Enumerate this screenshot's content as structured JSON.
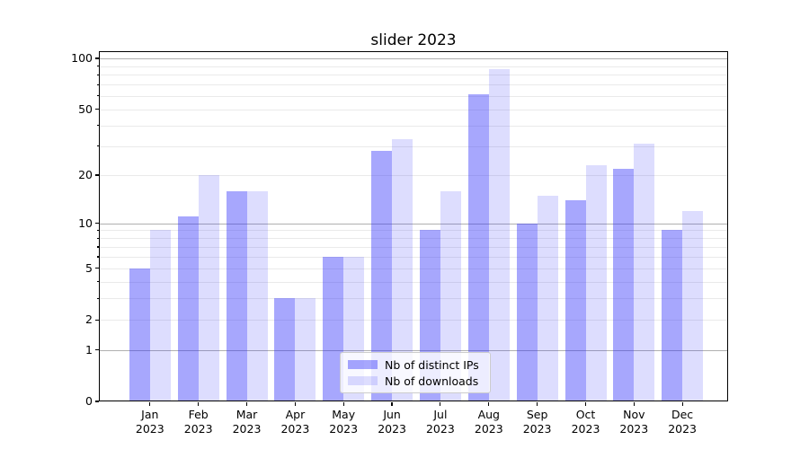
{
  "chart_data": {
    "type": "bar",
    "title": "slider 2023",
    "categories": [
      "Jan 2023",
      "Feb 2023",
      "Mar 2023",
      "Apr 2023",
      "May 2023",
      "Jun 2023",
      "Jul 2023",
      "Aug 2023",
      "Sep 2023",
      "Oct 2023",
      "Nov 2023",
      "Dec 2023"
    ],
    "series": [
      {
        "name": "Nb of distinct IPs",
        "fill": "rgba(45,45,250,0.42)",
        "values": [
          5,
          11,
          16,
          3,
          6,
          28,
          9,
          61,
          10,
          14,
          22,
          9
        ]
      },
      {
        "name": "Nb of downloads",
        "fill": "rgba(45,45,250,0.16)",
        "values": [
          9,
          20,
          16,
          3,
          6,
          33,
          16,
          86,
          15,
          23,
          31,
          12
        ]
      }
    ],
    "yscale": "log1p",
    "ylim": [
      0,
      110
    ],
    "y_ticks": [
      0,
      1,
      2,
      5,
      10,
      20,
      50,
      100
    ],
    "y_major_grid": [
      1,
      10,
      100
    ],
    "y_minor_grid": [
      2,
      3,
      4,
      5,
      6,
      7,
      8,
      9,
      20,
      30,
      40,
      50,
      60,
      70,
      80,
      90
    ],
    "grid": true,
    "legend_position": "lower center"
  },
  "colors": {
    "major_grid": "#b0b0b0",
    "minor_grid": "#eaeaea",
    "axis": "#000000",
    "legend_bg": "rgba(255,255,255,0.8)",
    "legend_border": "#cccccc"
  }
}
